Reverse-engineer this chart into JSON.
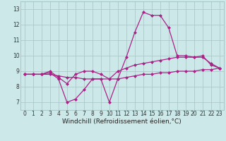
{
  "x": [
    0,
    1,
    2,
    3,
    4,
    5,
    6,
    7,
    8,
    9,
    10,
    11,
    12,
    13,
    14,
    15,
    16,
    17,
    18,
    19,
    20,
    21,
    22,
    23
  ],
  "line1": [
    8.8,
    8.8,
    8.8,
    8.9,
    8.5,
    7.0,
    7.2,
    7.8,
    8.5,
    8.5,
    7.0,
    8.5,
    9.9,
    11.5,
    12.8,
    12.6,
    12.6,
    11.8,
    10.0,
    10.0,
    9.9,
    10.0,
    9.4,
    9.2
  ],
  "line2": [
    8.8,
    8.8,
    8.8,
    9.0,
    8.6,
    8.2,
    8.8,
    9.0,
    9.0,
    8.8,
    8.5,
    9.0,
    9.2,
    9.4,
    9.5,
    9.6,
    9.7,
    9.8,
    9.9,
    9.9,
    9.9,
    9.9,
    9.5,
    9.2
  ],
  "line3": [
    8.8,
    8.8,
    8.8,
    8.8,
    8.7,
    8.6,
    8.6,
    8.5,
    8.5,
    8.5,
    8.5,
    8.5,
    8.6,
    8.7,
    8.8,
    8.8,
    8.9,
    8.9,
    9.0,
    9.0,
    9.0,
    9.1,
    9.1,
    9.2
  ],
  "color": "#aa2288",
  "bg_color": "#cce8e8",
  "grid_color": "#99ccbb",
  "xlabel": "Windchill (Refroidissement éolien,°C)",
  "ylim": [
    6.5,
    13.5
  ],
  "xlim": [
    -0.5,
    23.5
  ],
  "yticks": [
    7,
    8,
    9,
    10,
    11,
    12,
    13
  ],
  "xticks": [
    0,
    1,
    2,
    3,
    4,
    5,
    6,
    7,
    8,
    9,
    10,
    11,
    12,
    13,
    14,
    15,
    16,
    17,
    18,
    19,
    20,
    21,
    22,
    23
  ],
  "xtick_labels": [
    "0",
    "1",
    "2",
    "3",
    "4",
    "5",
    "6",
    "7",
    "8",
    "9",
    "10",
    "11",
    "12",
    "13",
    "14",
    "15",
    "16",
    "17",
    "18",
    "19",
    "20",
    "21",
    "22",
    "23"
  ],
  "linewidth": 0.9,
  "marker": "D",
  "markersize": 2.0,
  "tick_fontsize": 5.5,
  "xlabel_fontsize": 6.5
}
